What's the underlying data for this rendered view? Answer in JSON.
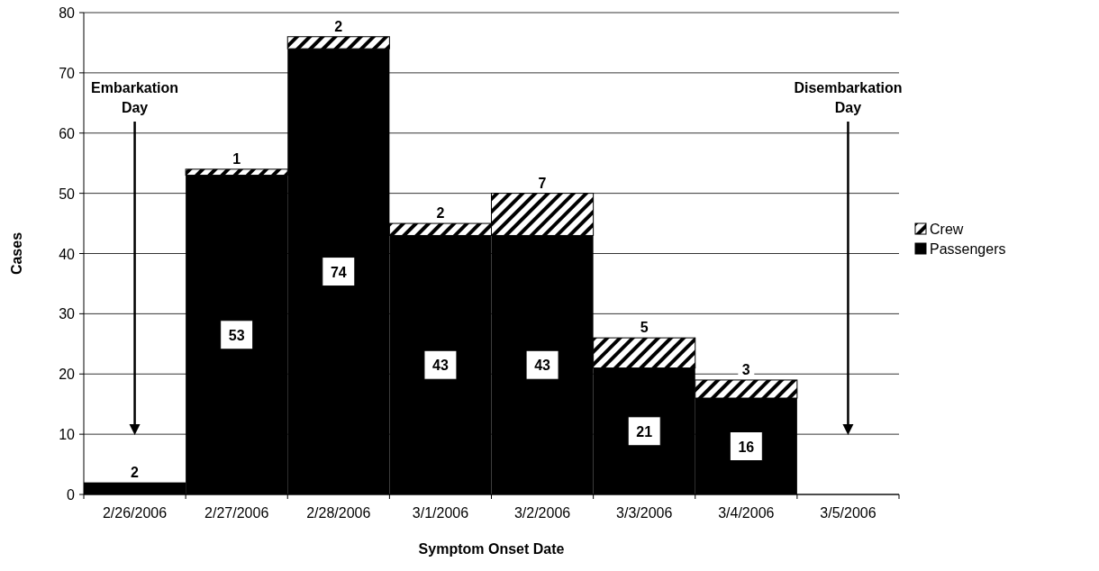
{
  "chart_data": {
    "type": "bar",
    "stacked": true,
    "xlabel": "Symptom Onset Date",
    "ylabel": "Cases",
    "categories": [
      "2/26/2006",
      "2/27/2006",
      "2/28/2006",
      "3/1/2006",
      "3/2/2006",
      "3/3/2006",
      "3/4/2006",
      "3/5/2006"
    ],
    "series": [
      {
        "name": "Passengers",
        "color": "#000000",
        "values": [
          2,
          53,
          74,
          43,
          43,
          21,
          16,
          null
        ]
      },
      {
        "name": "Crew",
        "color": "#000000",
        "values": [
          null,
          1,
          2,
          2,
          7,
          5,
          3,
          null
        ]
      }
    ],
    "ylim": [
      0,
      80
    ],
    "yticks": [
      0,
      10,
      20,
      30,
      40,
      50,
      60,
      70,
      80
    ],
    "grid": "y",
    "legend": "right",
    "data_labels": true,
    "annotations": [
      "Embarkation Day",
      "Disembarkation Day"
    ]
  }
}
